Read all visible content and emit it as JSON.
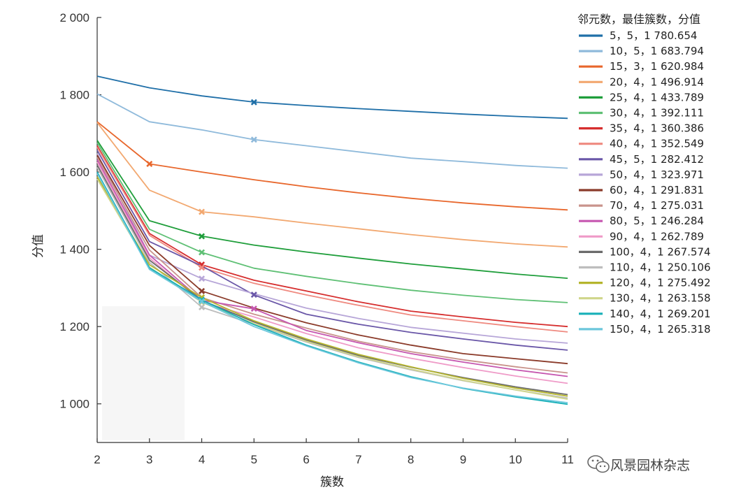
{
  "chart_data": {
    "type": "line",
    "xlabel": "簇数",
    "ylabel": "分值",
    "x": [
      2,
      3,
      4,
      5,
      6,
      7,
      8,
      9,
      10,
      11
    ],
    "x_tick_labels": [
      "2",
      "3",
      "4",
      "5",
      "6",
      "7",
      "8",
      "9",
      "10",
      "11"
    ],
    "ylim": [
      900,
      2000
    ],
    "y_ticks": [
      1000,
      1200,
      1400,
      1600,
      1800,
      2000
    ],
    "y_tick_labels": [
      "1 000",
      "1 200",
      "1 400",
      "1 600",
      "1 800",
      "2 000"
    ],
    "grid": false,
    "legend_title": "邻元数，最佳簇数，分值",
    "legend_position": "top-right",
    "series": [
      {
        "name": "5，5，1 780.654",
        "color": "#1f6fa8",
        "best_k": 5,
        "best_score": 1780.654,
        "values": [
          1848,
          1818,
          1797,
          1781,
          1772,
          1764,
          1757,
          1750,
          1744,
          1739
        ]
      },
      {
        "name": "10，5，1 683.794",
        "color": "#8fbadb",
        "best_k": 5,
        "best_score": 1683.794,
        "values": [
          1802,
          1730,
          1709,
          1684,
          1668,
          1652,
          1636,
          1627,
          1617,
          1610
        ]
      },
      {
        "name": "15，3，1 620.984",
        "color": "#e8672c",
        "best_k": 3,
        "best_score": 1620.984,
        "values": [
          1730,
          1621,
          1600,
          1580,
          1562,
          1546,
          1532,
          1520,
          1510,
          1502
        ]
      },
      {
        "name": "20，4，1 496.914",
        "color": "#f2a870",
        "best_k": 4,
        "best_score": 1496.914,
        "values": [
          1728,
          1553,
          1497,
          1484,
          1468,
          1453,
          1438,
          1425,
          1414,
          1406
        ]
      },
      {
        "name": "25，4，1 433.789",
        "color": "#1f9e3b",
        "best_k": 4,
        "best_score": 1433.789,
        "values": [
          1682,
          1474,
          1434,
          1411,
          1393,
          1377,
          1362,
          1349,
          1336,
          1325
        ]
      },
      {
        "name": "30，4，1 392.111",
        "color": "#5fc075",
        "best_k": 4,
        "best_score": 1392.111,
        "values": [
          1676,
          1452,
          1392,
          1351,
          1330,
          1311,
          1294,
          1281,
          1270,
          1262
        ]
      },
      {
        "name": "35，4，1 360.386",
        "color": "#d62e2e",
        "best_k": 4,
        "best_score": 1360.386,
        "values": [
          1668,
          1441,
          1360,
          1320,
          1292,
          1264,
          1240,
          1225,
          1211,
          1200
        ]
      },
      {
        "name": "40，4，1 352.549",
        "color": "#ef8a80",
        "best_k": 4,
        "best_score": 1352.549,
        "values": [
          1664,
          1436,
          1353,
          1312,
          1282,
          1255,
          1230,
          1215,
          1200,
          1186
        ]
      },
      {
        "name": "45，5，1 282.412",
        "color": "#6a57a8",
        "best_k": 5,
        "best_score": 1282.412,
        "values": [
          1656,
          1420,
          1357,
          1282,
          1232,
          1206,
          1185,
          1168,
          1152,
          1139
        ]
      },
      {
        "name": "50，4，1 323.971",
        "color": "#b7a6d8",
        "best_k": 4,
        "best_score": 1323.971,
        "values": [
          1648,
          1385,
          1324,
          1285,
          1248,
          1221,
          1198,
          1183,
          1168,
          1157
        ]
      },
      {
        "name": "60，4，1 291.831",
        "color": "#8b3b2a",
        "best_k": 4,
        "best_score": 1291.831,
        "values": [
          1644,
          1410,
          1292,
          1248,
          1210,
          1178,
          1152,
          1130,
          1117,
          1104
        ]
      },
      {
        "name": "70，4，1 275.031",
        "color": "#c9948c",
        "best_k": 4,
        "best_score": 1275.031,
        "values": [
          1638,
          1398,
          1275,
          1232,
          1196,
          1162,
          1135,
          1114,
          1096,
          1080
        ]
      },
      {
        "name": "80，5，1 246.284",
        "color": "#c657b0",
        "best_k": 5,
        "best_score": 1246.284,
        "values": [
          1632,
          1385,
          1268,
          1246,
          1190,
          1158,
          1130,
          1108,
          1088,
          1071
        ]
      },
      {
        "name": "90，4，1 262.789",
        "color": "#ef9bc8",
        "best_k": 4,
        "best_score": 1262.789,
        "values": [
          1626,
          1378,
          1263,
          1225,
          1182,
          1145,
          1118,
          1094,
          1072,
          1053
        ]
      },
      {
        "name": "100，4，1 267.574",
        "color": "#6b6b6b",
        "best_k": 4,
        "best_score": 1267.574,
        "values": [
          1618,
          1372,
          1268,
          1212,
          1165,
          1125,
          1095,
          1068,
          1044,
          1024
        ]
      },
      {
        "name": "110，4，1 250.106",
        "color": "#bdbdbd",
        "best_k": 4,
        "best_score": 1250.106,
        "values": [
          1612,
          1366,
          1250,
          1206,
          1160,
          1120,
          1088,
          1060,
          1036,
          1015
        ]
      },
      {
        "name": "120，4，1 275.492",
        "color": "#b5b52d",
        "best_k": 4,
        "best_score": 1275.492,
        "values": [
          1588,
          1360,
          1275,
          1215,
          1168,
          1128,
          1096,
          1066,
          1041,
          1020
        ]
      },
      {
        "name": "130，4，1 263.158",
        "color": "#cfd68a",
        "best_k": 4,
        "best_score": 1263.158,
        "values": [
          1582,
          1354,
          1263,
          1208,
          1162,
          1122,
          1090,
          1061,
          1036,
          1012
        ]
      },
      {
        "name": "140，4，1 269.201",
        "color": "#18b0b8",
        "best_k": 4,
        "best_score": 1269.201,
        "values": [
          1600,
          1352,
          1269,
          1205,
          1152,
          1108,
          1070,
          1040,
          1018,
          999
        ]
      },
      {
        "name": "150，4，1 265.318",
        "color": "#6cc7dc",
        "best_k": 4,
        "best_score": 1265.318,
        "values": [
          1596,
          1348,
          1265,
          1200,
          1150,
          1106,
          1068,
          1041,
          1020,
          1003
        ]
      }
    ]
  },
  "watermark": {
    "text": "风景园林杂志",
    "icon": "wechat-icon"
  }
}
